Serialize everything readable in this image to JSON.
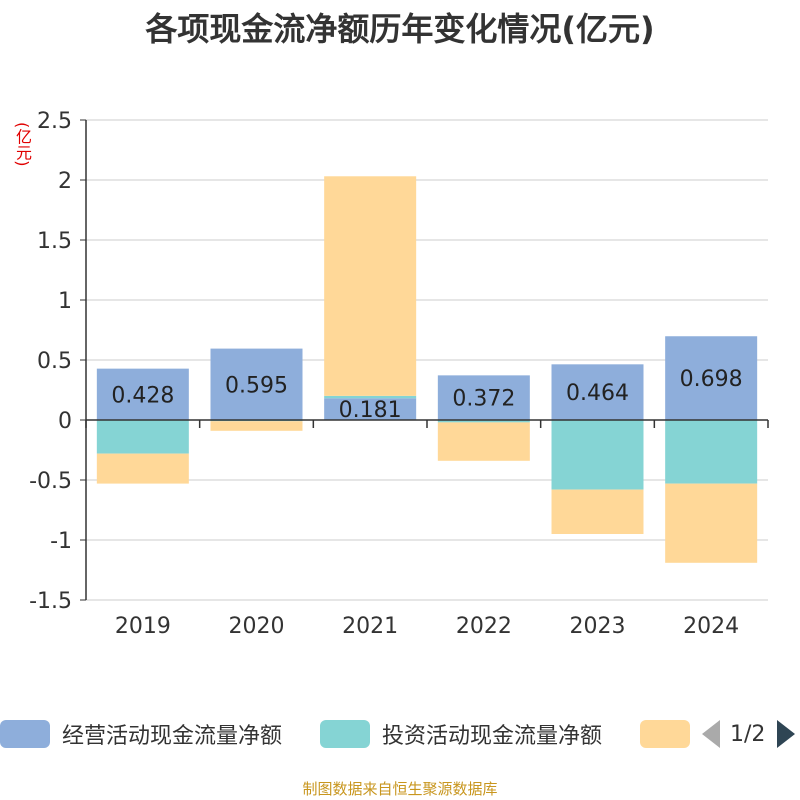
{
  "title": "各项现金流净额历年变化情况(亿元)",
  "unit_label": "(亿元)",
  "source": "制图数据来自恒生聚源数据库",
  "legend_page": "1/2",
  "colors": {
    "operating": "#8eaedb",
    "investing": "#85d4d4",
    "financing": "#ffd898",
    "axis": "#333333",
    "grid": "#cccccc",
    "text": "#333333"
  },
  "chart_data": {
    "type": "bar",
    "stacked": true,
    "categories": [
      "2019",
      "2020",
      "2021",
      "2022",
      "2023",
      "2024"
    ],
    "series": [
      {
        "name": "经营活动现金流量净额",
        "values": [
          0.428,
          0.595,
          0.181,
          0.372,
          0.464,
          0.698
        ],
        "labels": [
          "0.428",
          "0.595",
          "0.181",
          "0.372",
          "0.464",
          "0.698"
        ]
      },
      {
        "name": "投资活动现金流量净额",
        "values": [
          -0.28,
          -0.01,
          0.02,
          -0.02,
          -0.58,
          -0.53
        ]
      },
      {
        "name": "",
        "values": [
          -0.25,
          -0.08,
          1.83,
          -0.32,
          -0.37,
          -0.66
        ]
      }
    ],
    "ylim": [
      -1.5,
      2.5
    ],
    "yticks": [
      2.5,
      2,
      1.5,
      1,
      0.5,
      0,
      -0.5,
      -1,
      -1.5
    ],
    "ytick_labels": [
      "2.5",
      "2",
      "1.5",
      "1",
      "0.5",
      "0",
      "-0.5",
      "-1",
      "-1.5"
    ],
    "grid": true
  }
}
